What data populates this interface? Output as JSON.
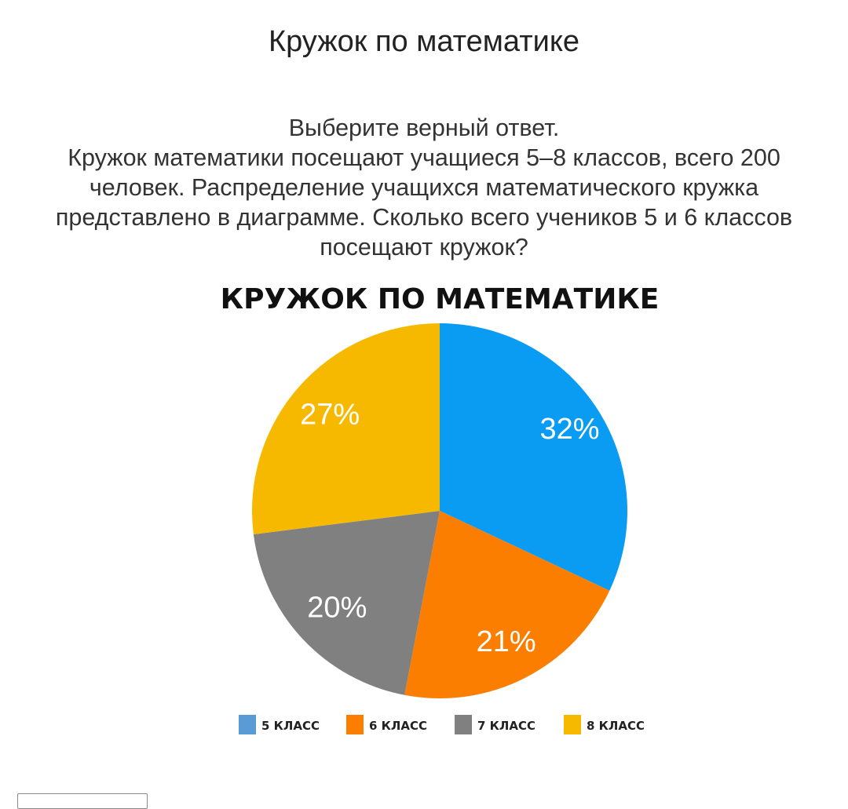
{
  "page": {
    "title": "Кружок по математике"
  },
  "question": {
    "lines": [
      "Выберите верный ответ.",
      "Кружок математики посещают учащиеся 5–8 классов, всего 200",
      "человек. Распределение учащихся математического кружка",
      "представлено в диаграмме. Сколько всего учеников 5 и 6 классов",
      "посещают кружок?"
    ]
  },
  "chart_data": {
    "type": "pie",
    "title": "КРУЖОК ПО МАТЕМАТИКЕ",
    "categories": [
      "5 КЛАСС",
      "6 КЛАСС",
      "7 КЛАСС",
      "8 КЛАСС"
    ],
    "values": [
      32,
      21,
      20,
      27
    ],
    "labels": [
      "32%",
      "21%",
      "20%",
      "27%"
    ],
    "colors": [
      "#0a9bf3",
      "#fb7e00",
      "#808080",
      "#f7b900"
    ],
    "legend_colors": [
      "#5b9bd5",
      "#fb7e00",
      "#808080",
      "#f7b900"
    ],
    "legend_position": "bottom",
    "start": "top, clockwise"
  }
}
